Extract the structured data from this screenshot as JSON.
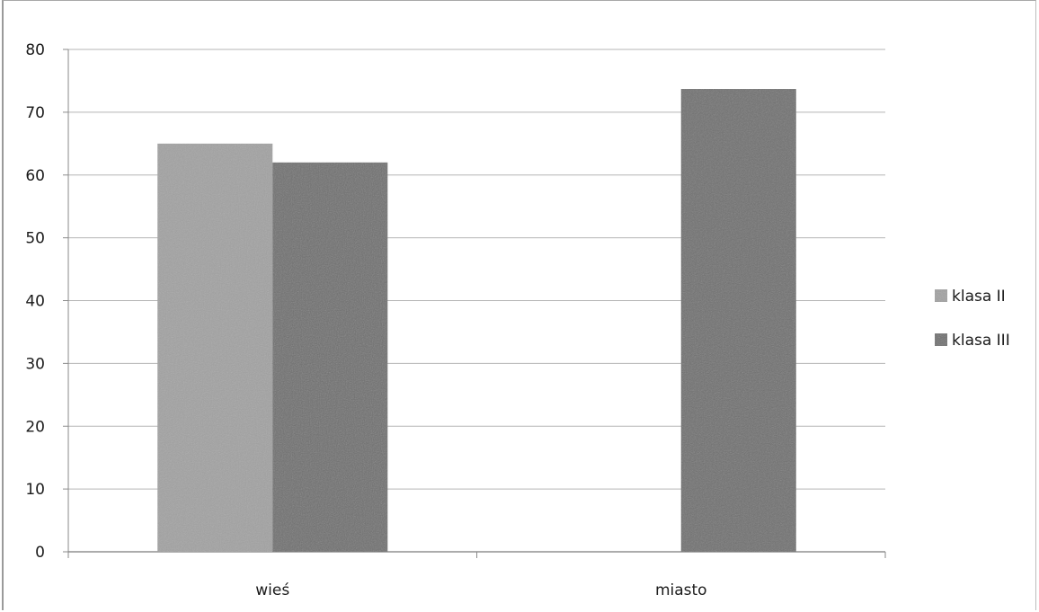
{
  "chart_data": {
    "type": "bar",
    "categories": [
      "wieś",
      "miasto"
    ],
    "series": [
      {
        "name": "klasa II",
        "values": [
          65,
          null
        ],
        "color": "#a2a2a2"
      },
      {
        "name": "klasa III",
        "values": [
          62,
          73.7
        ],
        "color": "#6f6f6f"
      }
    ],
    "y_ticks": [
      "0",
      "10",
      "20",
      "30",
      "40",
      "50",
      "60",
      "70",
      "80"
    ],
    "ylim": [
      0,
      80
    ],
    "grid": true,
    "legend_position": "right"
  }
}
